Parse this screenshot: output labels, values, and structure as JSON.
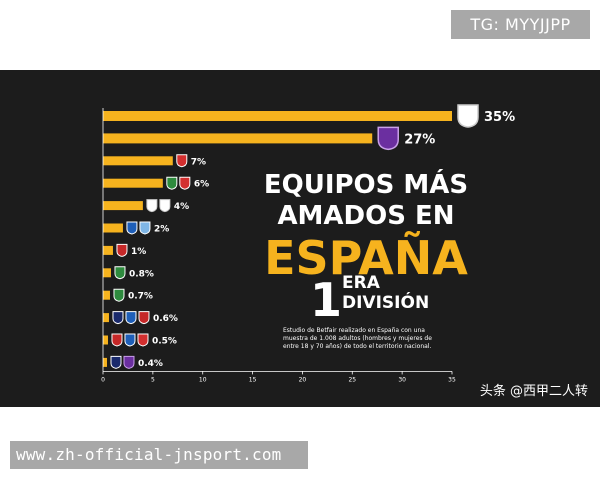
{
  "tag": "TG: MYYJJPP",
  "url": "www.zh-official-jnsport.com",
  "watermark": "头条 @西甲二人转",
  "colors": {
    "bar": "#f6b31e",
    "panel": "#1c1c1c",
    "text": "#ffffff"
  },
  "chart_data": {
    "type": "bar",
    "orientation": "horizontal",
    "title_lines": [
      "EQUIPOS MÁS",
      "AMADOS EN",
      "ESPAÑA"
    ],
    "subtitle_number": "1",
    "subtitle_suffix": "ERA",
    "subtitle_word": "DIVISIÓN",
    "note_lines": [
      "Estudio de Betfair realizado en España con una",
      "muestra de 1.008 adultos (hombres y mujeres de",
      "entre 18 y 70 años) de todo el territorio nacional."
    ],
    "xlim": [
      0,
      35
    ],
    "xticks": [
      "0",
      "5",
      "10",
      "15",
      "20",
      "25",
      "30",
      "35"
    ],
    "bars": [
      {
        "value": 35,
        "label": "35%",
        "crests": [
          "shield-white"
        ]
      },
      {
        "value": 27,
        "label": "27%",
        "crests": [
          "shield-purple"
        ]
      },
      {
        "value": 7,
        "label": "7%",
        "crests": [
          "shield-redwhite"
        ]
      },
      {
        "value": 6,
        "label": "6%",
        "crests": [
          "shield-green",
          "shield-redwhite"
        ]
      },
      {
        "value": 4,
        "label": "4%",
        "crests": [
          "shield-white",
          "shield-white"
        ]
      },
      {
        "value": 2,
        "label": "2%",
        "crests": [
          "shield-blue",
          "shield-lightblue"
        ]
      },
      {
        "value": 1,
        "label": "1%",
        "crests": [
          "shield-red"
        ]
      },
      {
        "value": 0.8,
        "label": "0.8%",
        "crests": [
          "shield-green"
        ]
      },
      {
        "value": 0.7,
        "label": "0.7%",
        "crests": [
          "shield-greenwhite"
        ]
      },
      {
        "value": 0.6,
        "label": "0.6%",
        "crests": [
          "shield-navy",
          "shield-blue",
          "shield-red"
        ]
      },
      {
        "value": 0.5,
        "label": "0.5%",
        "crests": [
          "shield-red",
          "shield-blue",
          "shield-redwhite"
        ]
      },
      {
        "value": 0.4,
        "label": "0.4%",
        "crests": [
          "shield-navy",
          "shield-purple"
        ]
      }
    ]
  }
}
